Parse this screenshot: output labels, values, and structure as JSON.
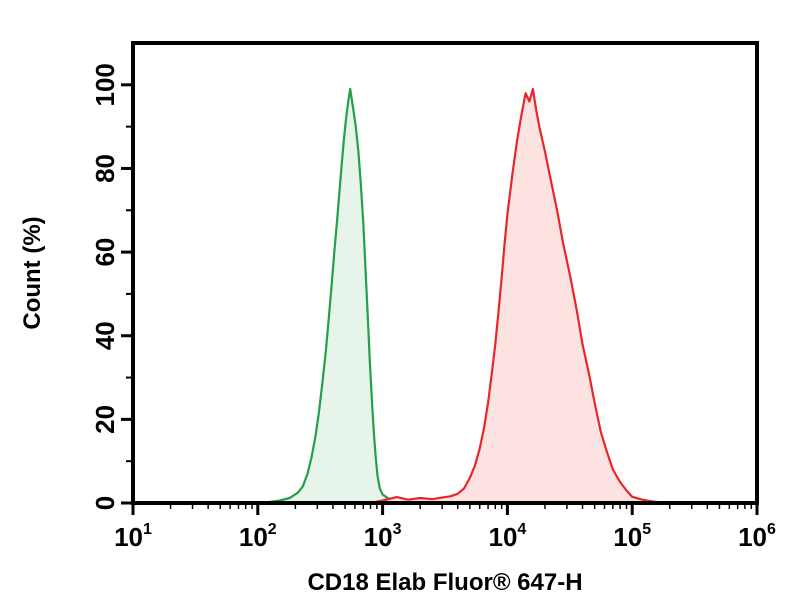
{
  "chart_data": {
    "type": "area",
    "title": "",
    "xlabel": "CD18 Elab Fluor® 647-H",
    "ylabel": "Count (%)",
    "x_scale": "log",
    "xlim": [
      10,
      1000000
    ],
    "ylim": [
      0,
      110
    ],
    "grid": false,
    "legend": "none",
    "x_ticks": [
      {
        "base": "10",
        "exp": "1",
        "value": 10
      },
      {
        "base": "10",
        "exp": "2",
        "value": 100
      },
      {
        "base": "10",
        "exp": "3",
        "value": 1000
      },
      {
        "base": "10",
        "exp": "4",
        "value": 10000
      },
      {
        "base": "10",
        "exp": "5",
        "value": 100000
      },
      {
        "base": "10",
        "exp": "6",
        "value": 1000000
      }
    ],
    "y_ticks": [
      {
        "label": "0",
        "value": 0
      },
      {
        "label": "20",
        "value": 20
      },
      {
        "label": "40",
        "value": 40
      },
      {
        "label": "60",
        "value": 60
      },
      {
        "label": "80",
        "value": 80
      },
      {
        "label": "100",
        "value": 100
      }
    ],
    "series": [
      {
        "color": "#22a04a",
        "fill": "#e6f4e9",
        "points": [
          [
            70,
            0
          ],
          [
            110,
            0
          ],
          [
            150,
            0.6
          ],
          [
            180,
            1.2
          ],
          [
            210,
            2.5
          ],
          [
            230,
            4
          ],
          [
            250,
            7
          ],
          [
            270,
            11
          ],
          [
            290,
            16
          ],
          [
            310,
            22
          ],
          [
            330,
            29
          ],
          [
            350,
            36
          ],
          [
            370,
            44
          ],
          [
            390,
            52
          ],
          [
            410,
            60
          ],
          [
            430,
            67
          ],
          [
            450,
            74
          ],
          [
            470,
            81
          ],
          [
            490,
            87
          ],
          [
            510,
            92
          ],
          [
            530,
            96
          ],
          [
            550,
            99
          ],
          [
            570,
            96
          ],
          [
            590,
            93
          ],
          [
            610,
            90
          ],
          [
            640,
            84
          ],
          [
            670,
            76
          ],
          [
            700,
            67
          ],
          [
            730,
            56
          ],
          [
            760,
            45
          ],
          [
            790,
            34
          ],
          [
            820,
            25
          ],
          [
            850,
            17
          ],
          [
            880,
            11
          ],
          [
            910,
            6.5
          ],
          [
            950,
            3.5
          ],
          [
            1000,
            2
          ],
          [
            1100,
            1.2
          ],
          [
            1200,
            0.8
          ],
          [
            1500,
            0.5
          ],
          [
            2000,
            0.3
          ],
          [
            3000,
            0.2
          ],
          [
            4000,
            0.1
          ],
          [
            5000,
            0
          ]
        ]
      },
      {
        "color": "#e8262a",
        "fill": "#fde2e2",
        "points": [
          [
            800,
            0
          ],
          [
            1000,
            0.6
          ],
          [
            1300,
            1.4
          ],
          [
            1600,
            0.8
          ],
          [
            2000,
            1.2
          ],
          [
            2500,
            0.9
          ],
          [
            3000,
            1.3
          ],
          [
            3500,
            1.6
          ],
          [
            4000,
            2.2
          ],
          [
            4500,
            3.5
          ],
          [
            5000,
            6
          ],
          [
            5500,
            9
          ],
          [
            6000,
            13
          ],
          [
            6500,
            18
          ],
          [
            7000,
            24
          ],
          [
            7500,
            31
          ],
          [
            8000,
            38
          ],
          [
            8500,
            46
          ],
          [
            9000,
            54
          ],
          [
            9500,
            62
          ],
          [
            10000,
            69
          ],
          [
            11000,
            79
          ],
          [
            12000,
            87
          ],
          [
            13000,
            93
          ],
          [
            14000,
            98
          ],
          [
            15000,
            96
          ],
          [
            16000,
            99
          ],
          [
            17000,
            94
          ],
          [
            18000,
            90
          ],
          [
            20000,
            84
          ],
          [
            22000,
            78
          ],
          [
            25000,
            70
          ],
          [
            28000,
            62
          ],
          [
            32000,
            54
          ],
          [
            36000,
            46
          ],
          [
            40000,
            38
          ],
          [
            45000,
            31
          ],
          [
            50000,
            24
          ],
          [
            56000,
            17
          ],
          [
            63000,
            12
          ],
          [
            70000,
            8
          ],
          [
            80000,
            5
          ],
          [
            90000,
            3
          ],
          [
            100000,
            1.5
          ],
          [
            120000,
            0.8
          ],
          [
            150000,
            0.3
          ],
          [
            200000,
            0
          ]
        ]
      }
    ]
  }
}
